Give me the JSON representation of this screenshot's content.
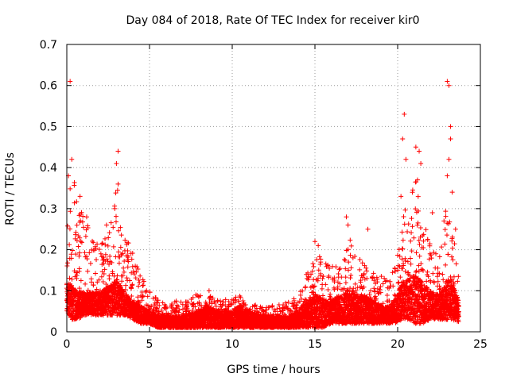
{
  "chart_data": {
    "type": "scatter",
    "title": "Day 084 of 2018, Rate Of TEC Index for receiver kir0",
    "xlabel": "GPS time / hours",
    "ylabel": "ROTI / TECUs",
    "xlim": [
      0,
      25
    ],
    "ylim": [
      0,
      0.7
    ],
    "xticks": [
      0,
      5,
      10,
      15,
      20,
      25
    ],
    "yticks": [
      0,
      0.1,
      0.2,
      0.3,
      0.4,
      0.5,
      0.6,
      0.7
    ],
    "grid": true,
    "marker": "+",
    "color": "#ff0000",
    "series": [
      {
        "name": "ROTI",
        "envelope": {
          "x": [
            0.0,
            0.3,
            0.7,
            1.0,
            1.5,
            2.0,
            2.5,
            3.0,
            3.5,
            4.0,
            4.5,
            5.0,
            5.5,
            6.0,
            7.0,
            8.0,
            8.5,
            9.0,
            10.0,
            10.5,
            11.0,
            12.0,
            13.0,
            13.5,
            14.0,
            14.5,
            15.0,
            15.5,
            16.0,
            16.5,
            17.0,
            17.5,
            18.0,
            18.5,
            19.0,
            19.5,
            20.0,
            20.3,
            20.7,
            21.0,
            21.5,
            22.0,
            22.5,
            23.0,
            23.3,
            23.7
          ],
          "upper": [
            0.3,
            0.4,
            0.32,
            0.3,
            0.25,
            0.22,
            0.24,
            0.38,
            0.24,
            0.19,
            0.14,
            0.1,
            0.08,
            0.07,
            0.08,
            0.09,
            0.1,
            0.08,
            0.08,
            0.09,
            0.07,
            0.06,
            0.07,
            0.08,
            0.09,
            0.15,
            0.2,
            0.17,
            0.16,
            0.18,
            0.25,
            0.18,
            0.18,
            0.16,
            0.14,
            0.12,
            0.2,
            0.32,
            0.3,
            0.4,
            0.28,
            0.22,
            0.18,
            0.34,
            0.25,
            0.15
          ],
          "lower": [
            0.05,
            0.03,
            0.03,
            0.04,
            0.04,
            0.04,
            0.04,
            0.04,
            0.04,
            0.03,
            0.02,
            0.02,
            0.01,
            0.01,
            0.01,
            0.01,
            0.01,
            0.01,
            0.01,
            0.01,
            0.01,
            0.01,
            0.01,
            0.01,
            0.01,
            0.01,
            0.01,
            0.01,
            0.02,
            0.02,
            0.02,
            0.02,
            0.02,
            0.02,
            0.02,
            0.02,
            0.02,
            0.03,
            0.03,
            0.02,
            0.02,
            0.03,
            0.03,
            0.03,
            0.03,
            0.02
          ],
          "typical": [
            0.1,
            0.09,
            0.08,
            0.08,
            0.08,
            0.08,
            0.09,
            0.1,
            0.08,
            0.06,
            0.05,
            0.04,
            0.03,
            0.03,
            0.03,
            0.04,
            0.05,
            0.04,
            0.04,
            0.05,
            0.04,
            0.03,
            0.03,
            0.03,
            0.04,
            0.06,
            0.07,
            0.06,
            0.06,
            0.07,
            0.08,
            0.07,
            0.07,
            0.06,
            0.05,
            0.05,
            0.07,
            0.1,
            0.1,
            0.11,
            0.09,
            0.08,
            0.07,
            0.1,
            0.09,
            0.06
          ]
        },
        "peaks": [
          {
            "x": 0.2,
            "y": 0.61
          },
          {
            "x": 0.3,
            "y": 0.42
          },
          {
            "x": 0.1,
            "y": 0.38
          },
          {
            "x": 0.8,
            "y": 0.33
          },
          {
            "x": 1.2,
            "y": 0.28
          },
          {
            "x": 2.4,
            "y": 0.26
          },
          {
            "x": 3.1,
            "y": 0.44
          },
          {
            "x": 3.0,
            "y": 0.41
          },
          {
            "x": 3.1,
            "y": 0.36
          },
          {
            "x": 2.9,
            "y": 0.3
          },
          {
            "x": 7.8,
            "y": 0.09
          },
          {
            "x": 8.6,
            "y": 0.1
          },
          {
            "x": 15.0,
            "y": 0.22
          },
          {
            "x": 15.2,
            "y": 0.21
          },
          {
            "x": 16.9,
            "y": 0.28
          },
          {
            "x": 17.0,
            "y": 0.26
          },
          {
            "x": 18.2,
            "y": 0.25
          },
          {
            "x": 20.2,
            "y": 0.33
          },
          {
            "x": 20.4,
            "y": 0.53
          },
          {
            "x": 20.3,
            "y": 0.47
          },
          {
            "x": 20.5,
            "y": 0.42
          },
          {
            "x": 21.1,
            "y": 0.45
          },
          {
            "x": 21.3,
            "y": 0.44
          },
          {
            "x": 21.4,
            "y": 0.41
          },
          {
            "x": 21.2,
            "y": 0.37
          },
          {
            "x": 22.1,
            "y": 0.29
          },
          {
            "x": 22.8,
            "y": 0.27
          },
          {
            "x": 23.0,
            "y": 0.61
          },
          {
            "x": 23.1,
            "y": 0.6
          },
          {
            "x": 23.2,
            "y": 0.5
          },
          {
            "x": 23.2,
            "y": 0.47
          },
          {
            "x": 23.1,
            "y": 0.42
          },
          {
            "x": 23.0,
            "y": 0.38
          },
          {
            "x": 23.3,
            "y": 0.34
          },
          {
            "x": 23.5,
            "y": 0.25
          }
        ]
      }
    ]
  }
}
